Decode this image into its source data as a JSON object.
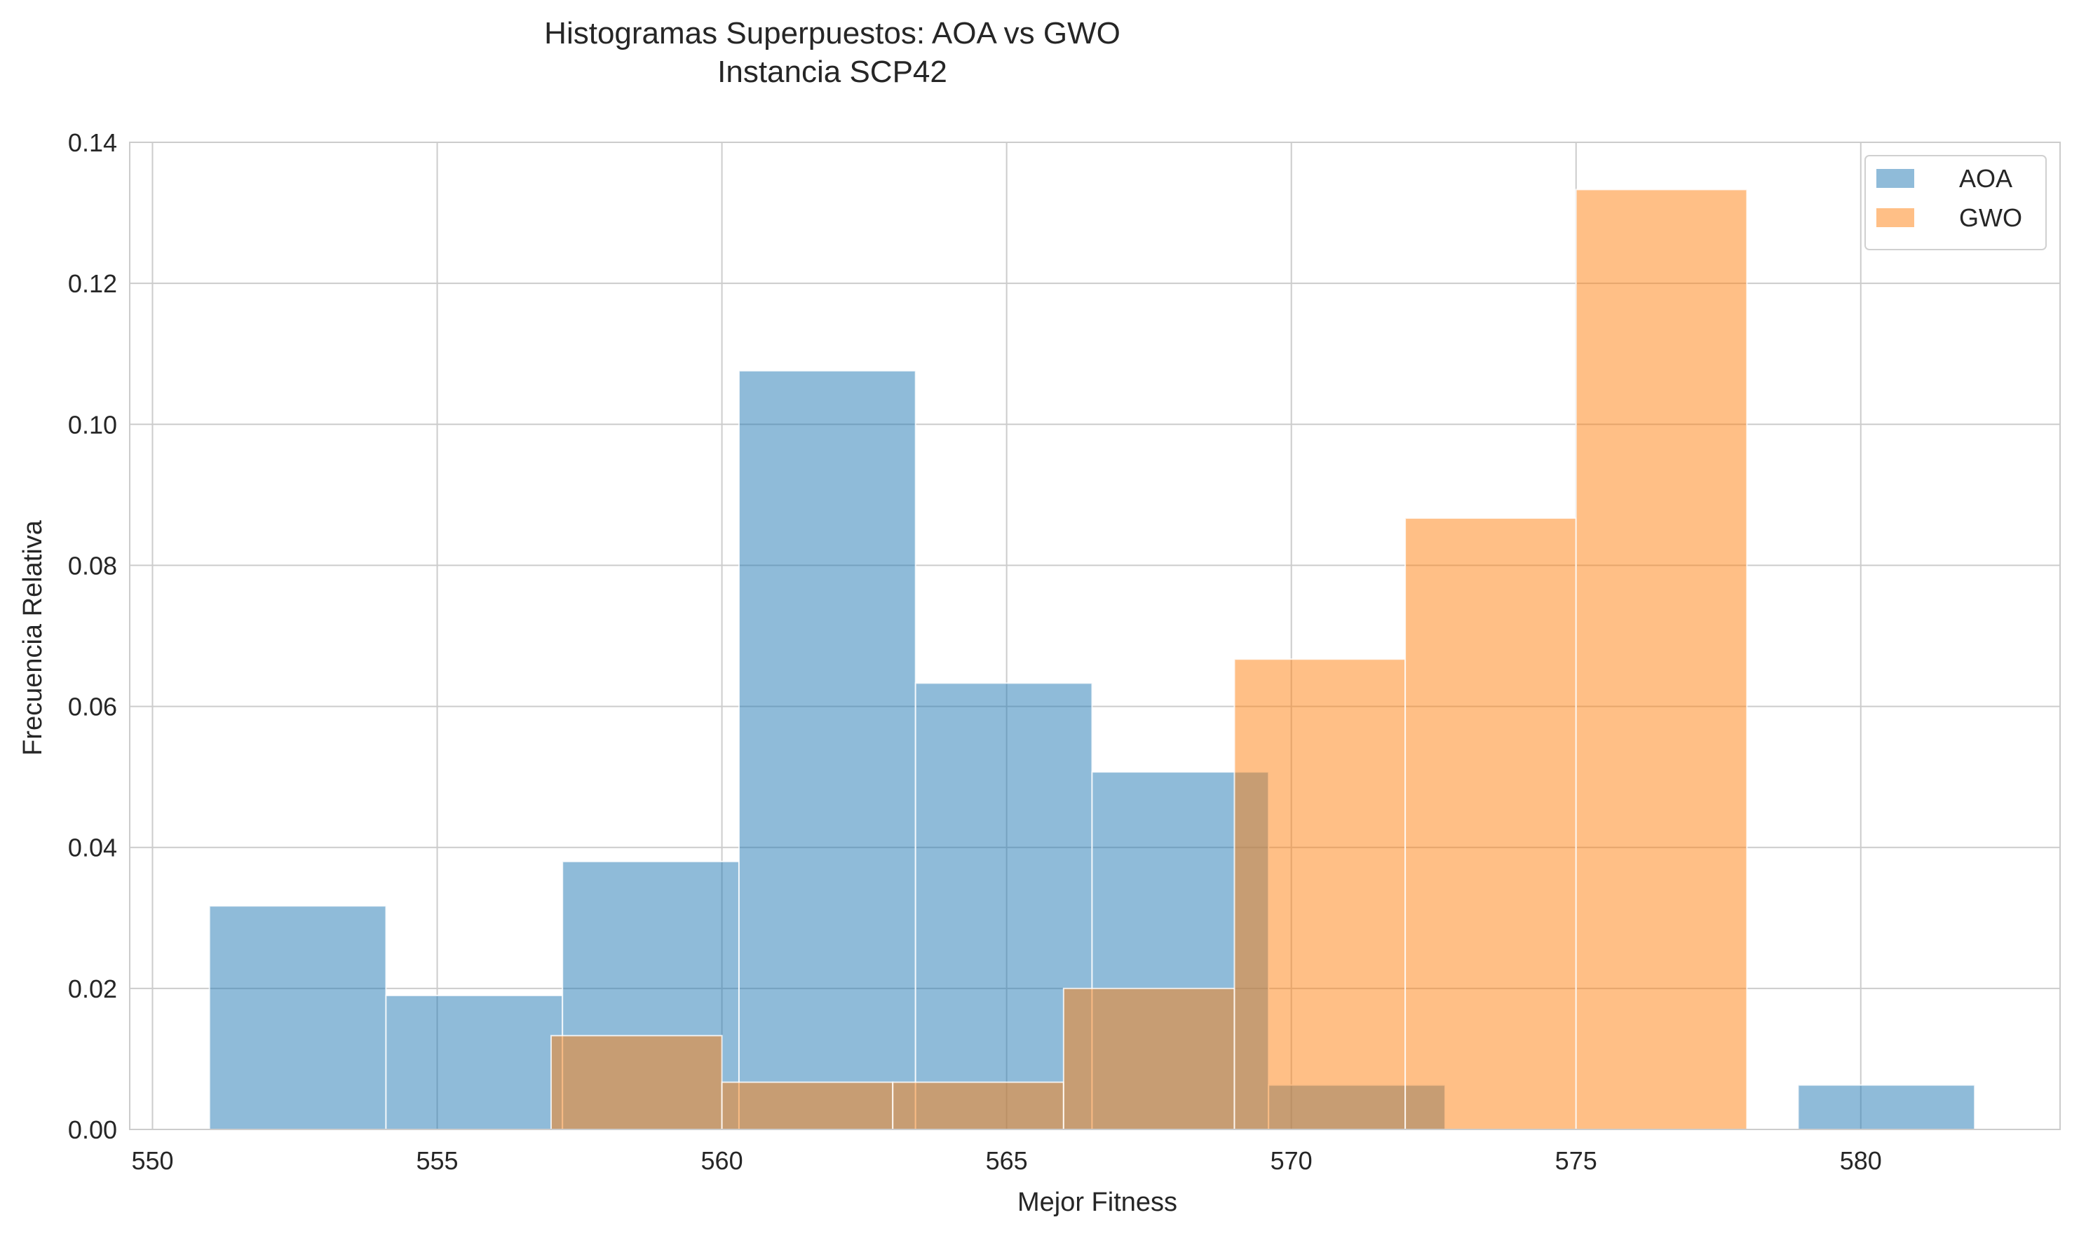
{
  "chart_data": {
    "type": "bar",
    "title": "Histogramas Superpuestos: AOA vs GWO",
    "subtitle": "Instancia SCP42",
    "xlabel": "Mejor Fitness",
    "ylabel": "Frecuencia Relativa",
    "xlim": [
      549.6,
      583.5
    ],
    "ylim": [
      0,
      0.14
    ],
    "xticks": [
      550,
      555,
      560,
      565,
      570,
      575,
      580
    ],
    "yticks": [
      0.0,
      0.02,
      0.04,
      0.06,
      0.08,
      0.1,
      0.12,
      0.14
    ],
    "grid": true,
    "legend_position": "top-right",
    "series": [
      {
        "name": "AOA",
        "color": "#1f77b4",
        "bins": [
          {
            "x0": 551.0,
            "x1": 554.1,
            "value": 0.0317
          },
          {
            "x0": 554.1,
            "x1": 557.2,
            "value": 0.019
          },
          {
            "x0": 557.2,
            "x1": 560.3,
            "value": 0.038
          },
          {
            "x0": 560.3,
            "x1": 563.4,
            "value": 0.1076
          },
          {
            "x0": 563.4,
            "x1": 566.5,
            "value": 0.0633
          },
          {
            "x0": 566.5,
            "x1": 569.6,
            "value": 0.0507
          },
          {
            "x0": 569.6,
            "x1": 572.7,
            "value": 0.0063
          },
          {
            "x0": 572.7,
            "x1": 575.8,
            "value": 0.0
          },
          {
            "x0": 575.8,
            "x1": 578.9,
            "value": 0.0
          },
          {
            "x0": 578.9,
            "x1": 582.0,
            "value": 0.0063
          }
        ]
      },
      {
        "name": "GWO",
        "color": "#ff7f0e",
        "bins": [
          {
            "x0": 557.0,
            "x1": 560.0,
            "value": 0.0133
          },
          {
            "x0": 560.0,
            "x1": 563.0,
            "value": 0.0067
          },
          {
            "x0": 563.0,
            "x1": 566.0,
            "value": 0.0067
          },
          {
            "x0": 566.0,
            "x1": 569.0,
            "value": 0.02
          },
          {
            "x0": 569.0,
            "x1": 572.0,
            "value": 0.0667
          },
          {
            "x0": 572.0,
            "x1": 575.0,
            "value": 0.0867
          },
          {
            "x0": 575.0,
            "x1": 578.0,
            "value": 0.1333
          }
        ]
      }
    ]
  }
}
